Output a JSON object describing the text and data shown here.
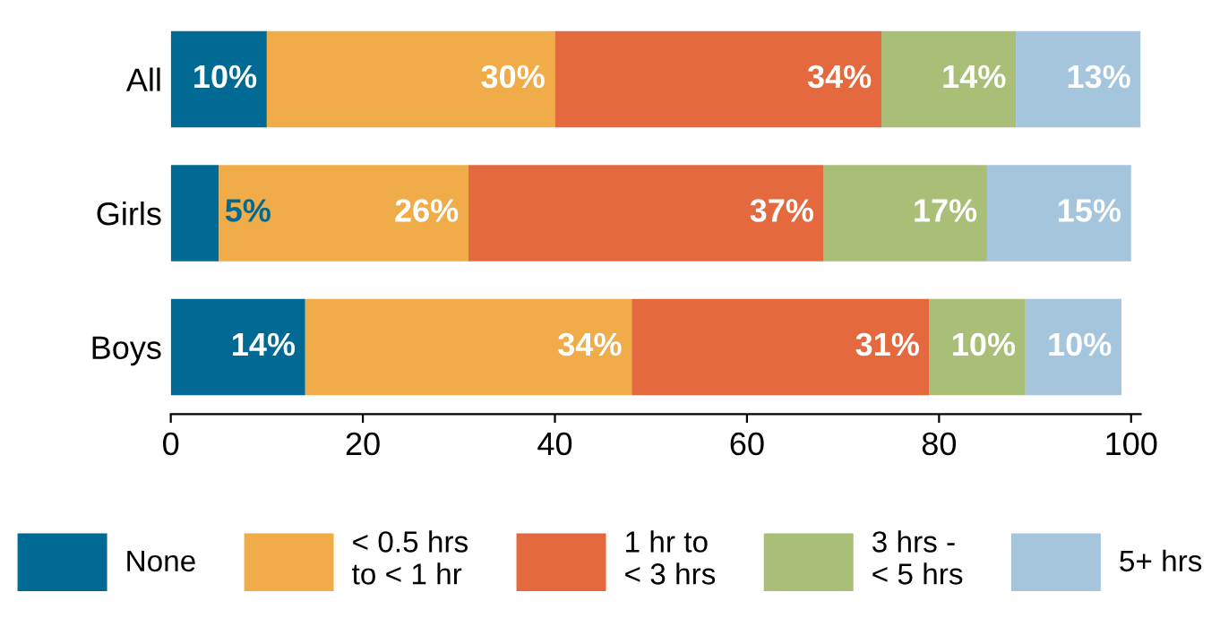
{
  "chart_data": {
    "type": "bar",
    "orientation": "horizontal",
    "stacked": true,
    "categories": [
      "All",
      "Girls",
      "Boys"
    ],
    "series": [
      {
        "name": "None",
        "color": "#006a94",
        "values": [
          10,
          5,
          14
        ]
      },
      {
        "name": "< 0.5 hrs\nto < 1 hr",
        "color": "#efac48",
        "values": [
          30,
          26,
          34
        ]
      },
      {
        "name": "1 hr to\n< 3 hrs",
        "color": "#e5693e",
        "values": [
          34,
          37,
          31
        ]
      },
      {
        "name": "3 hrs -\n< 5 hrs",
        "color": "#a9be76",
        "values": [
          14,
          17,
          10
        ]
      },
      {
        "name": "5+ hrs",
        "color": "#a5c5dd",
        "values": [
          13,
          15,
          10
        ]
      }
    ],
    "value_labels": [
      [
        "10%",
        "5%",
        "14%"
      ],
      [
        "30%",
        "26%",
        "34%"
      ],
      [
        "34%",
        "37%",
        "31%"
      ],
      [
        "14%",
        "17%",
        "10%"
      ],
      [
        "13%",
        "15%",
        "10%"
      ]
    ],
    "xlim": [
      0,
      101
    ],
    "xticks": [
      0,
      20,
      40,
      60,
      80,
      100
    ],
    "grid": false,
    "legend": "bottom"
  }
}
